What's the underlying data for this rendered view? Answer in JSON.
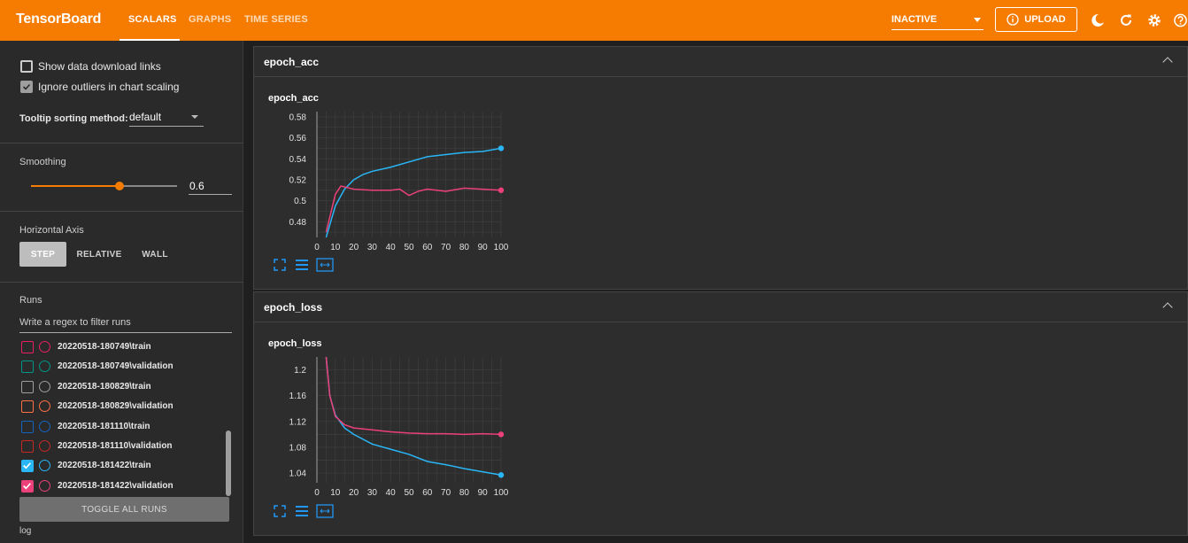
{
  "header": {
    "brand": "TensorBoard",
    "tabs": [
      {
        "label": "SCALARS"
      },
      {
        "label": "GRAPHS"
      },
      {
        "label": "TIME SERIES"
      }
    ],
    "run_state": "INACTIVE",
    "upload_label": "UPLOAD",
    "accent_color": "#f57c00"
  },
  "sidebar": {
    "show_download_label": "Show data download links",
    "ignore_outliers_label": "Ignore outliers in chart scaling",
    "tooltip_label": "Tooltip sorting method:",
    "tooltip_value": "default",
    "smoothing_title": "Smoothing",
    "smoothing_value": "0.6",
    "haxis_title": "Horizontal Axis",
    "haxis_options": [
      "STEP",
      "RELATIVE",
      "WALL"
    ],
    "runs_title": "Runs",
    "runs_filter_placeholder": "Write a regex to filter runs",
    "runs": [
      {
        "name": "20220518-180749\\train",
        "color": "#e91e63",
        "checked": false
      },
      {
        "name": "20220518-180749\\validation",
        "color": "#009688",
        "checked": false
      },
      {
        "name": "20220518-180829\\train",
        "color": "#9e9e9e",
        "checked": false
      },
      {
        "name": "20220518-180829\\validation",
        "color": "#ff7043",
        "checked": false
      },
      {
        "name": "20220518-181110\\train",
        "color": "#1565c0",
        "checked": false
      },
      {
        "name": "20220518-181110\\validation",
        "color": "#c62828",
        "checked": false
      },
      {
        "name": "20220518-181422\\train",
        "color": "#29b6f6",
        "checked": true
      },
      {
        "name": "20220518-181422\\validation",
        "color": "#ec407a",
        "checked": true
      }
    ],
    "toggle_all_label": "TOGGLE ALL RUNS",
    "log_dir": "log"
  },
  "cards": [
    {
      "header": "epoch_acc",
      "title": "epoch_acc"
    },
    {
      "header": "epoch_loss",
      "title": "epoch_loss"
    }
  ],
  "chart_data": [
    {
      "type": "line",
      "title": "epoch_acc",
      "xlim": [
        0,
        100
      ],
      "ylim": [
        0.465,
        0.585
      ],
      "xticks": [
        0,
        10,
        20,
        30,
        40,
        50,
        60,
        70,
        80,
        90,
        100
      ],
      "yticks": [
        0.48,
        0.5,
        0.52,
        0.54,
        0.56,
        0.58
      ],
      "ytick_labels": [
        "0.48",
        "0.5",
        "0.52",
        "0.54",
        "0.56",
        "0.58"
      ],
      "series": [
        {
          "color": "#29b6f6",
          "x": [
            5,
            10,
            15,
            20,
            25,
            30,
            40,
            50,
            60,
            70,
            80,
            90,
            100
          ],
          "y": [
            0.465,
            0.495,
            0.511,
            0.52,
            0.525,
            0.528,
            0.532,
            0.537,
            0.542,
            0.544,
            0.546,
            0.547,
            0.55
          ]
        },
        {
          "color": "#ec407a",
          "x": [
            5,
            10,
            13,
            20,
            30,
            40,
            45,
            50,
            55,
            60,
            70,
            80,
            90,
            100
          ],
          "y": [
            0.47,
            0.506,
            0.514,
            0.511,
            0.51,
            0.51,
            0.511,
            0.505,
            0.509,
            0.511,
            0.509,
            0.512,
            0.511,
            0.51
          ]
        }
      ]
    },
    {
      "type": "line",
      "title": "epoch_loss",
      "xlim": [
        0,
        100
      ],
      "ylim": [
        1.025,
        1.22
      ],
      "xticks": [
        0,
        10,
        20,
        30,
        40,
        50,
        60,
        70,
        80,
        90,
        100
      ],
      "yticks": [
        1.04,
        1.08,
        1.12,
        1.16,
        1.2
      ],
      "ytick_labels": [
        "1.04",
        "1.08",
        "1.12",
        "1.16",
        "1.2"
      ],
      "series": [
        {
          "color": "#29b6f6",
          "x": [
            5,
            7,
            10,
            15,
            20,
            30,
            40,
            50,
            60,
            70,
            80,
            90,
            100
          ],
          "y": [
            1.22,
            1.16,
            1.13,
            1.11,
            1.1,
            1.085,
            1.077,
            1.069,
            1.058,
            1.053,
            1.047,
            1.042,
            1.037
          ]
        },
        {
          "color": "#ec407a",
          "x": [
            5,
            7,
            10,
            15,
            20,
            30,
            40,
            50,
            60,
            70,
            80,
            90,
            100
          ],
          "y": [
            1.22,
            1.16,
            1.128,
            1.115,
            1.11,
            1.107,
            1.104,
            1.102,
            1.101,
            1.101,
            1.1,
            1.101,
            1.1
          ]
        }
      ]
    }
  ]
}
